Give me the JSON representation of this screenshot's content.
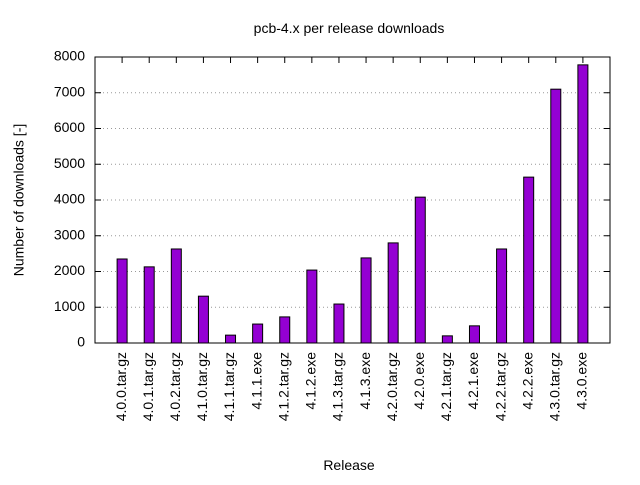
{
  "chart_data": {
    "type": "bar",
    "title": "pcb-4.x per release downloads",
    "x_label": "Release",
    "y_label": "Number of downloads [-]",
    "categories": [
      "4.0.0.tar.gz",
      "4.0.1.tar.gz",
      "4.0.2.tar.gz",
      "4.1.0.tar.gz",
      "4.1.1.tar.gz",
      "4.1.1.exe",
      "4.1.2.tar.gz",
      "4.1.2.exe",
      "4.1.3.tar.gz",
      "4.1.3.exe",
      "4.2.0.tar.gz",
      "4.2.0.exe",
      "4.2.1.tar.gz",
      "4.2.1.exe",
      "4.2.2.tar.gz",
      "4.2.2.exe",
      "4.3.0.tar.gz",
      "4.3.0.exe"
    ],
    "values": [
      2350,
      2130,
      2630,
      1310,
      220,
      530,
      730,
      2040,
      1090,
      2380,
      2800,
      4080,
      200,
      480,
      2630,
      4640,
      7100,
      7780
    ],
    "color": "#9400d3",
    "ylim": [
      0,
      8000
    ],
    "yticks": [
      0,
      1000,
      2000,
      3000,
      4000,
      5000,
      6000,
      7000,
      8000
    ],
    "grid": true
  }
}
